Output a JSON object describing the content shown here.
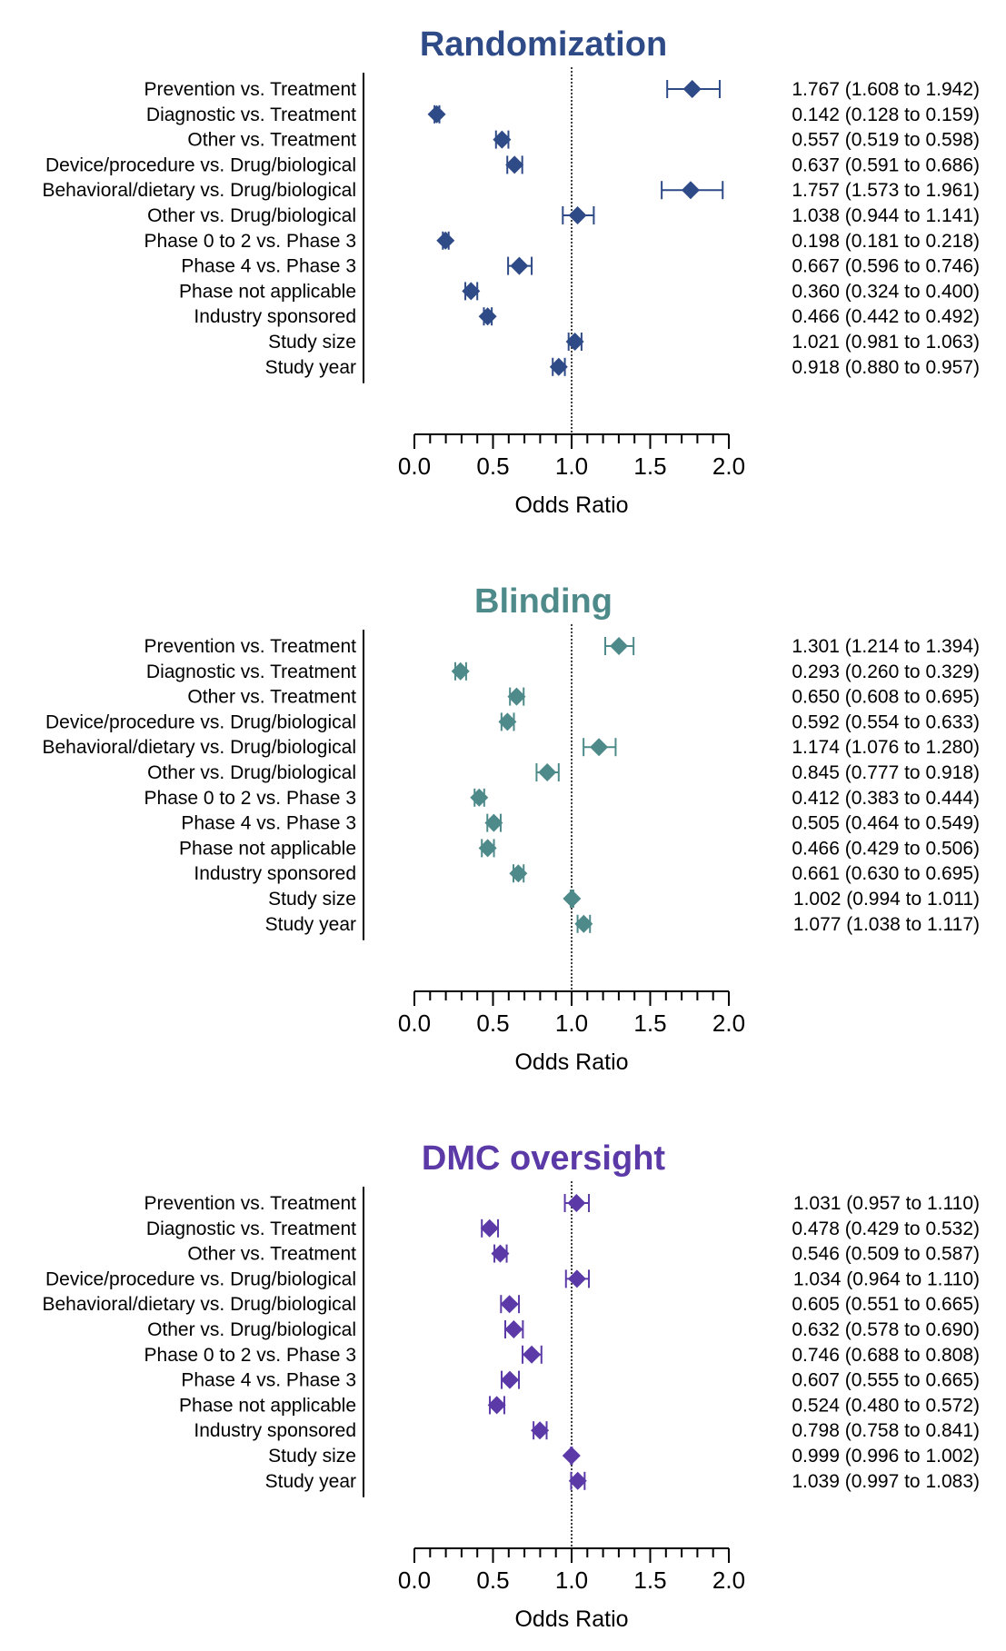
{
  "chart_data": [
    {
      "type": "forest",
      "title": "Randomization",
      "color": "#2e4a87",
      "xlabel": "Odds Ratio",
      "xlim": [
        0.0,
        2.0
      ],
      "xticks": [
        "0.0",
        "0.5",
        "1.0",
        "1.5",
        "2.0"
      ],
      "reference_line": 1.0,
      "rows": [
        {
          "label": "Prevention vs. Treatment",
          "or": 1.767,
          "lo": 1.608,
          "hi": 1.942,
          "text": "1.767 (1.608 to 1.942)"
        },
        {
          "label": "Diagnostic vs. Treatment",
          "or": 0.142,
          "lo": 0.128,
          "hi": 0.159,
          "text": "0.142 (0.128 to 0.159)"
        },
        {
          "label": "Other vs. Treatment",
          "or": 0.557,
          "lo": 0.519,
          "hi": 0.598,
          "text": "0.557 (0.519 to 0.598)"
        },
        {
          "label": "Device/procedure vs. Drug/biological",
          "or": 0.637,
          "lo": 0.591,
          "hi": 0.686,
          "text": "0.637 (0.591 to 0.686)"
        },
        {
          "label": "Behavioral/dietary vs. Drug/biological",
          "or": 1.757,
          "lo": 1.573,
          "hi": 1.961,
          "text": "1.757 (1.573 to 1.961)"
        },
        {
          "label": "Other vs. Drug/biological",
          "or": 1.038,
          "lo": 0.944,
          "hi": 1.141,
          "text": "1.038 (0.944 to 1.141)"
        },
        {
          "label": "Phase 0 to 2 vs. Phase 3",
          "or": 0.198,
          "lo": 0.181,
          "hi": 0.218,
          "text": "0.198 (0.181 to 0.218)"
        },
        {
          "label": "Phase 4 vs. Phase 3",
          "or": 0.667,
          "lo": 0.596,
          "hi": 0.746,
          "text": "0.667 (0.596 to 0.746)"
        },
        {
          "label": "Phase not applicable",
          "or": 0.36,
          "lo": 0.324,
          "hi": 0.4,
          "text": "0.360 (0.324 to 0.400)"
        },
        {
          "label": "Industry sponsored",
          "or": 0.466,
          "lo": 0.442,
          "hi": 0.492,
          "text": "0.466 (0.442 to 0.492)"
        },
        {
          "label": "Study size",
          "or": 1.021,
          "lo": 0.981,
          "hi": 1.063,
          "text": "1.021 (0.981 to 1.063)"
        },
        {
          "label": "Study year",
          "or": 0.918,
          "lo": 0.88,
          "hi": 0.957,
          "text": "0.918 (0.880 to 0.957)"
        }
      ]
    },
    {
      "type": "forest",
      "title": "Blinding",
      "color": "#4f8a8b",
      "xlabel": "Odds Ratio",
      "xlim": [
        0.0,
        2.0
      ],
      "xticks": [
        "0.0",
        "0.5",
        "1.0",
        "1.5",
        "2.0"
      ],
      "reference_line": 1.0,
      "rows": [
        {
          "label": "Prevention vs. Treatment",
          "or": 1.301,
          "lo": 1.214,
          "hi": 1.394,
          "text": "1.301 (1.214 to 1.394)"
        },
        {
          "label": "Diagnostic vs. Treatment",
          "or": 0.293,
          "lo": 0.26,
          "hi": 0.329,
          "text": "0.293 (0.260 to 0.329)"
        },
        {
          "label": "Other vs. Treatment",
          "or": 0.65,
          "lo": 0.608,
          "hi": 0.695,
          "text": "0.650 (0.608 to 0.695)"
        },
        {
          "label": "Device/procedure vs. Drug/biological",
          "or": 0.592,
          "lo": 0.554,
          "hi": 0.633,
          "text": "0.592 (0.554 to 0.633)"
        },
        {
          "label": "Behavioral/dietary vs. Drug/biological",
          "or": 1.174,
          "lo": 1.076,
          "hi": 1.28,
          "text": "1.174 (1.076 to 1.280)"
        },
        {
          "label": "Other vs. Drug/biological",
          "or": 0.845,
          "lo": 0.777,
          "hi": 0.918,
          "text": "0.845 (0.777 to 0.918)"
        },
        {
          "label": "Phase 0 to 2 vs. Phase 3",
          "or": 0.412,
          "lo": 0.383,
          "hi": 0.444,
          "text": "0.412 (0.383 to 0.444)"
        },
        {
          "label": "Phase 4 vs. Phase 3",
          "or": 0.505,
          "lo": 0.464,
          "hi": 0.549,
          "text": "0.505 (0.464 to 0.549)"
        },
        {
          "label": "Phase not applicable",
          "or": 0.466,
          "lo": 0.429,
          "hi": 0.506,
          "text": "0.466 (0.429 to 0.506)"
        },
        {
          "label": "Industry sponsored",
          "or": 0.661,
          "lo": 0.63,
          "hi": 0.695,
          "text": "0.661 (0.630 to 0.695)"
        },
        {
          "label": "Study size",
          "or": 1.002,
          "lo": 0.994,
          "hi": 1.011,
          "text": "1.002 (0.994 to 1.011)"
        },
        {
          "label": "Study year",
          "or": 1.077,
          "lo": 1.038,
          "hi": 1.117,
          "text": "1.077 (1.038 to 1.117)"
        }
      ]
    },
    {
      "type": "forest",
      "title": "DMC oversight",
      "color": "#5b3aa8",
      "xlabel": "Odds Ratio",
      "xlim": [
        0.0,
        2.0
      ],
      "xticks": [
        "0.0",
        "0.5",
        "1.0",
        "1.5",
        "2.0"
      ],
      "reference_line": 1.0,
      "rows": [
        {
          "label": "Prevention vs. Treatment",
          "or": 1.031,
          "lo": 0.957,
          "hi": 1.11,
          "text": "1.031 (0.957 to 1.110)"
        },
        {
          "label": "Diagnostic vs. Treatment",
          "or": 0.478,
          "lo": 0.429,
          "hi": 0.532,
          "text": "0.478 (0.429 to 0.532)"
        },
        {
          "label": "Other vs. Treatment",
          "or": 0.546,
          "lo": 0.509,
          "hi": 0.587,
          "text": "0.546 (0.509 to 0.587)"
        },
        {
          "label": "Device/procedure vs. Drug/biological",
          "or": 1.034,
          "lo": 0.964,
          "hi": 1.11,
          "text": "1.034 (0.964 to 1.110)"
        },
        {
          "label": "Behavioral/dietary vs. Drug/biological",
          "or": 0.605,
          "lo": 0.551,
          "hi": 0.665,
          "text": "0.605 (0.551 to 0.665)"
        },
        {
          "label": "Other vs. Drug/biological",
          "or": 0.632,
          "lo": 0.578,
          "hi": 0.69,
          "text": "0.632 (0.578 to 0.690)"
        },
        {
          "label": "Phase 0 to 2 vs. Phase 3",
          "or": 0.746,
          "lo": 0.688,
          "hi": 0.808,
          "text": "0.746 (0.688 to 0.808)"
        },
        {
          "label": "Phase 4 vs. Phase 3",
          "or": 0.607,
          "lo": 0.555,
          "hi": 0.665,
          "text": "0.607 (0.555 to 0.665)"
        },
        {
          "label": "Phase not applicable",
          "or": 0.524,
          "lo": 0.48,
          "hi": 0.572,
          "text": "0.524 (0.480 to 0.572)"
        },
        {
          "label": "Industry sponsored",
          "or": 0.798,
          "lo": 0.758,
          "hi": 0.841,
          "text": "0.798 (0.758 to 0.841)"
        },
        {
          "label": "Study size",
          "or": 0.999,
          "lo": 0.996,
          "hi": 1.002,
          "text": "0.999 (0.996 to 1.002)"
        },
        {
          "label": "Study year",
          "or": 1.039,
          "lo": 0.997,
          "hi": 1.083,
          "text": "1.039 (0.997 to 1.083)"
        }
      ]
    }
  ]
}
